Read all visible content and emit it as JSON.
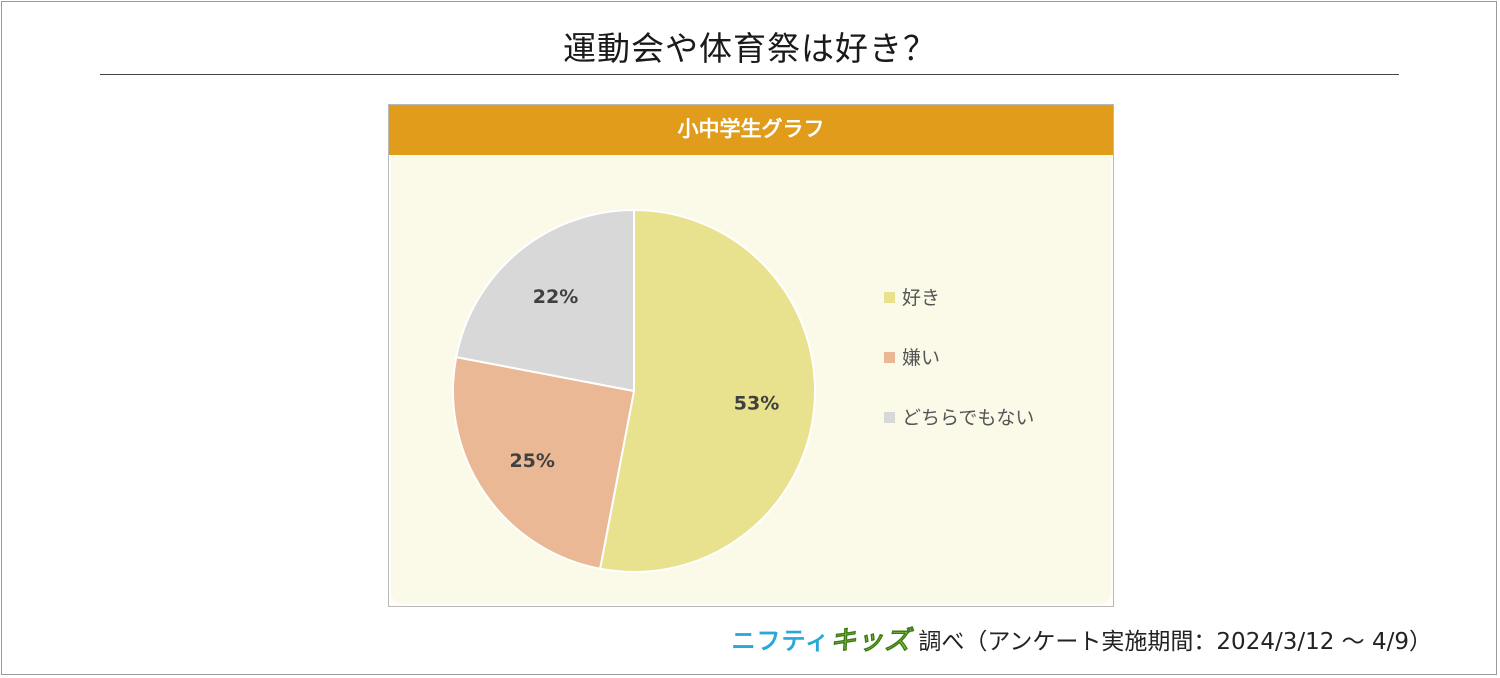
{
  "page_title": "運動会や体育祭は好き？",
  "panel_title": "小中学生グラフ",
  "source": {
    "brand_part1": "ニフティ",
    "brand_part2": "キッズ",
    "text": "調べ（アンケート実施期間：2024/3/12 ～ 4/9）"
  },
  "chart_data": {
    "type": "pie",
    "title": "小中学生グラフ",
    "legend_position": "right",
    "slices": [
      {
        "label": "好き",
        "value": 53,
        "value_label": "53%",
        "color": "#e8e28e"
      },
      {
        "label": "嫌い",
        "value": 25,
        "value_label": "25%",
        "color": "#ebb895"
      },
      {
        "label": "どちらでもない",
        "value": 22,
        "value_label": "22%",
        "color": "#d8d8d8"
      }
    ]
  }
}
